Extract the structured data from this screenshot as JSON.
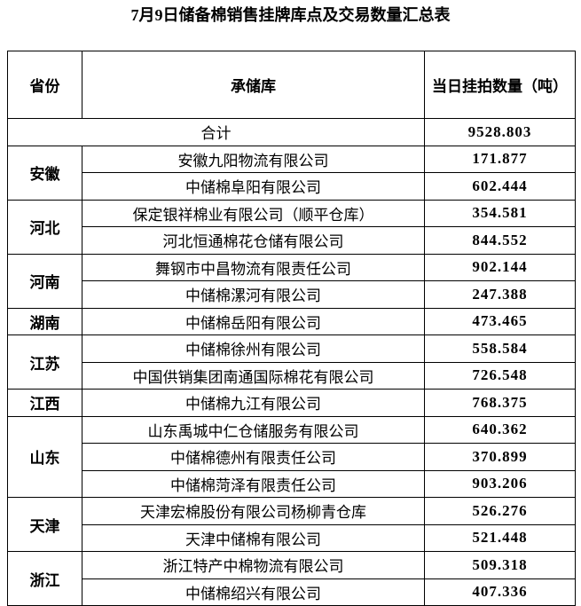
{
  "header": {
    "title": "7月9日储备棉销售挂牌库点及交易数量汇总表"
  },
  "table": {
    "columns": [
      "省份",
      "承储库",
      "当日挂拍数量（吨）"
    ],
    "total_label": "合计",
    "total_value": "9528.803",
    "groups": [
      {
        "province": "安徽",
        "rows": [
          [
            "安徽九阳物流有限公司",
            "171.877"
          ],
          [
            "中储棉阜阳有限公司",
            "602.444"
          ]
        ]
      },
      {
        "province": "河北",
        "rows": [
          [
            "保定银祥棉业有限公司（顺平仓库）",
            "354.581"
          ],
          [
            "河北恒通棉花仓储有限公司",
            "844.552"
          ]
        ]
      },
      {
        "province": "河南",
        "rows": [
          [
            "舞钢市中昌物流有限责任公司",
            "902.144"
          ],
          [
            "中储棉漯河有限公司",
            "247.388"
          ]
        ]
      },
      {
        "province": "湖南",
        "rows": [
          [
            "中储棉岳阳有限公司",
            "473.465"
          ]
        ]
      },
      {
        "province": "江苏",
        "rows": [
          [
            "中储棉徐州有限公司",
            "558.584"
          ],
          [
            "中国供销集团南通国际棉花有限公司",
            "726.548"
          ]
        ]
      },
      {
        "province": "江西",
        "rows": [
          [
            "中储棉九江有限公司",
            "768.375"
          ]
        ]
      },
      {
        "province": "山东",
        "rows": [
          [
            "山东禹城中仁仓储服务有限公司",
            "640.362"
          ],
          [
            "中储棉德州有限责任公司",
            "370.899"
          ],
          [
            "中储棉菏泽有限责任公司",
            "903.206"
          ]
        ]
      },
      {
        "province": "天津",
        "rows": [
          [
            "天津宏棉股份有限公司杨柳青仓库",
            "526.276"
          ],
          [
            "天津中储棉有限公司",
            "521.448"
          ]
        ]
      },
      {
        "province": "浙江",
        "rows": [
          [
            "浙江特产中棉物流有限公司",
            "509.318"
          ],
          [
            "中储棉绍兴有限公司",
            "407.336"
          ]
        ]
      }
    ]
  }
}
